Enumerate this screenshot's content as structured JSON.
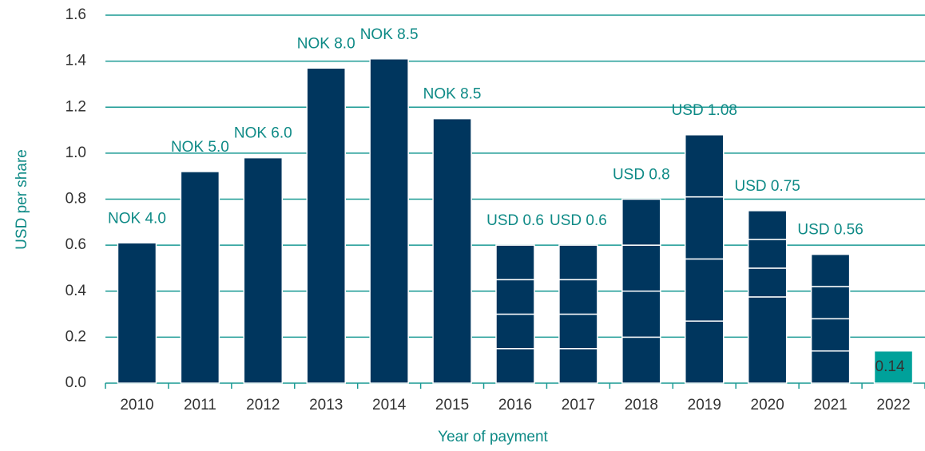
{
  "chart_data": {
    "type": "stacked-bar",
    "xlabel": "Year of payment",
    "ylabel": "USD per share",
    "categories": [
      "2010",
      "2011",
      "2012",
      "2013",
      "2014",
      "2015",
      "2016",
      "2017",
      "2018",
      "2019",
      "2020",
      "2021",
      "2022"
    ],
    "values": [
      [
        0.61
      ],
      [
        0.92
      ],
      [
        0.98
      ],
      [
        1.37
      ],
      [
        1.41
      ],
      [
        1.15
      ],
      [
        0.15,
        0.15,
        0.15,
        0.15
      ],
      [
        0.15,
        0.15,
        0.15,
        0.15
      ],
      [
        0.2,
        0.2,
        0.2,
        0.2
      ],
      [
        0.27,
        0.27,
        0.27,
        0.27
      ],
      [
        0.375,
        0.125,
        0.125,
        0.125
      ],
      [
        0.14,
        0.14,
        0.14,
        0.14
      ],
      [
        0.14
      ]
    ],
    "annotations": [
      "NOK 4.0",
      "NOK 5.0",
      "NOK 6.0",
      "NOK 8.0",
      "NOK 8.5",
      "NOK 8.5",
      "USD 0.6",
      "USD 0.6",
      "USD 0.8",
      "USD 1.08",
      "USD 0.75",
      "USD 0.56",
      null
    ],
    "value_labels": [
      null,
      null,
      null,
      null,
      null,
      null,
      null,
      null,
      null,
      null,
      null,
      null,
      "0.14"
    ],
    "colors": [
      "#00365e",
      "#00365e",
      "#00365e",
      "#00365e",
      "#00365e",
      "#00365e",
      "#00365e",
      "#00365e",
      "#00365e",
      "#00365e",
      "#00365e",
      "#00365e",
      "#00a19a"
    ],
    "ylim": [
      0,
      1.6
    ],
    "yticks": [
      {
        "value": 0,
        "label": "0.0"
      },
      0.2,
      0.4,
      0.6,
      0.8,
      {
        "value": 1,
        "label": "1.0"
      },
      1.2,
      1.4,
      1.6
    ],
    "grid": true
  }
}
